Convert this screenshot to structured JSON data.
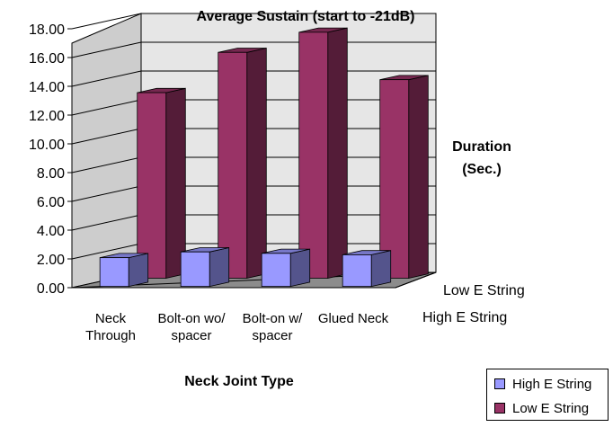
{
  "chart_data": {
    "type": "bar",
    "title": "Average Sustain (start to -21dB)",
    "xlabel": "Neck Joint Type",
    "ylabel_lines": [
      "Duration",
      "(Sec.)"
    ],
    "categories": [
      [
        "Neck",
        "Through"
      ],
      [
        "Bolt-on wo/",
        "spacer"
      ],
      [
        "Bolt-on w/",
        "spacer"
      ],
      [
        "Glued Neck"
      ]
    ],
    "y_ticks": [
      "0.00",
      "2.00",
      "4.00",
      "6.00",
      "8.00",
      "10.00",
      "12.00",
      "14.00",
      "16.00",
      "18.00"
    ],
    "ylim": [
      0,
      18
    ],
    "depth_labels": [
      "Low E String",
      "High E String"
    ],
    "series": [
      {
        "name": "High E String",
        "color": "#9999ff",
        "values": [
          2.0,
          2.4,
          2.3,
          2.2
        ]
      },
      {
        "name": "Low E String",
        "color": "#993366",
        "values": [
          12.9,
          15.7,
          17.1,
          13.8
        ]
      }
    ],
    "legend_position": "bottom-right",
    "grid": true
  }
}
